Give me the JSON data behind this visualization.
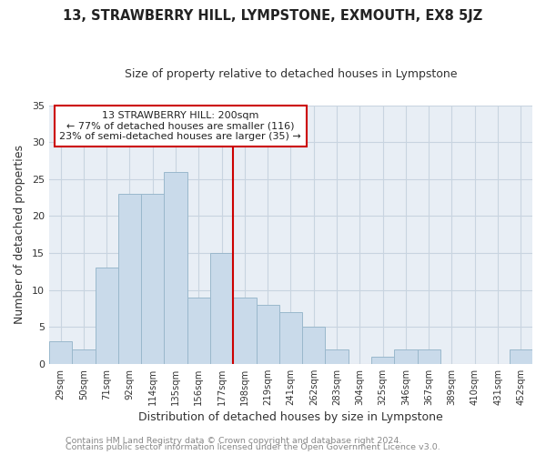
{
  "title": "13, STRAWBERRY HILL, LYMPSTONE, EXMOUTH, EX8 5JZ",
  "subtitle": "Size of property relative to detached houses in Lympstone",
  "xlabel": "Distribution of detached houses by size in Lympstone",
  "ylabel": "Number of detached properties",
  "bar_labels": [
    "29sqm",
    "50sqm",
    "71sqm",
    "92sqm",
    "114sqm",
    "135sqm",
    "156sqm",
    "177sqm",
    "198sqm",
    "219sqm",
    "241sqm",
    "262sqm",
    "283sqm",
    "304sqm",
    "325sqm",
    "346sqm",
    "367sqm",
    "389sqm",
    "410sqm",
    "431sqm",
    "452sqm"
  ],
  "bar_values": [
    3,
    2,
    13,
    23,
    23,
    26,
    9,
    15,
    9,
    8,
    7,
    5,
    2,
    0,
    1,
    2,
    2,
    0,
    0,
    0,
    2
  ],
  "bar_color": "#c9daea",
  "bar_edge_color": "#9ab8cc",
  "vline_index": 8,
  "vline_color": "#cc0000",
  "ylim": [
    0,
    35
  ],
  "yticks": [
    0,
    5,
    10,
    15,
    20,
    25,
    30,
    35
  ],
  "annotation_title": "13 STRAWBERRY HILL: 200sqm",
  "annotation_line1": "← 77% of detached houses are smaller (116)",
  "annotation_line2": "23% of semi-detached houses are larger (35) →",
  "annotation_box_color": "#ffffff",
  "annotation_box_edge": "#cc0000",
  "footer1": "Contains HM Land Registry data © Crown copyright and database right 2024.",
  "footer2": "Contains public sector information licensed under the Open Government Licence v3.0.",
  "plot_bg_color": "#e8eef5",
  "fig_bg_color": "#ffffff",
  "grid_color": "#c8d4e0",
  "title_color": "#222222",
  "subtitle_color": "#333333",
  "axis_label_color": "#333333",
  "tick_color": "#333333",
  "footer_color": "#888888"
}
